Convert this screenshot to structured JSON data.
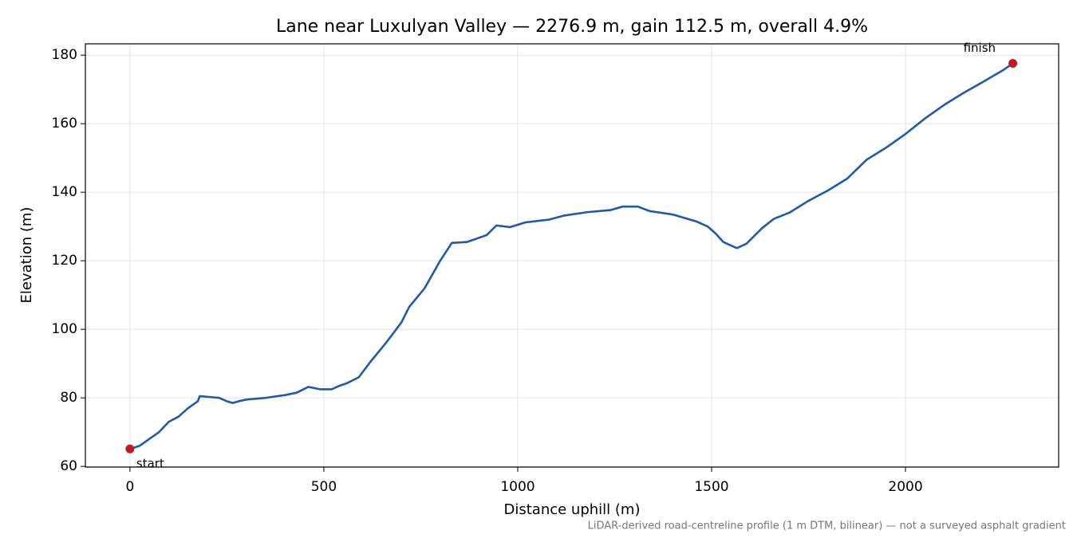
{
  "chart_data": {
    "type": "line",
    "title": "Lane near Luxulyan Valley — 2276.9 m, gain 112.5 m, overall 4.9%",
    "xlabel": "Distance uphill (m)",
    "ylabel": "Elevation (m)",
    "note": "LiDAR-derived road-centreline profile (1 m DTM, bilinear) — not a surveyed asphalt gradient",
    "color": "#1f5aa8",
    "x": [
      0,
      25,
      50,
      75,
      100,
      125,
      150,
      175,
      180,
      200,
      230,
      250,
      265,
      280,
      300,
      350,
      400,
      430,
      460,
      490,
      520,
      540,
      560,
      590,
      620,
      660,
      700,
      720,
      760,
      800,
      830,
      870,
      920,
      945,
      980,
      1020,
      1080,
      1120,
      1180,
      1240,
      1270,
      1310,
      1340,
      1400,
      1460,
      1490,
      1510,
      1530,
      1565,
      1590,
      1630,
      1660,
      1700,
      1750,
      1800,
      1850,
      1900,
      1950,
      2000,
      2050,
      2100,
      2150,
      2200,
      2250,
      2276.9
    ],
    "values": [
      65.1,
      66,
      68,
      70,
      73,
      74.5,
      77,
      79,
      80.5,
      80.3,
      80,
      79,
      78.5,
      79,
      79.5,
      80,
      80.8,
      81.5,
      83.2,
      82.5,
      82.5,
      83.5,
      84.3,
      86,
      90.5,
      96,
      102,
      106.5,
      112,
      120,
      125.2,
      125.5,
      127.5,
      130.3,
      129.8,
      131.2,
      132,
      133.2,
      134.2,
      134.8,
      135.8,
      135.8,
      134.5,
      133.5,
      131.5,
      130,
      128,
      125.5,
      123.7,
      125,
      129.5,
      132.2,
      134,
      137.5,
      140.5,
      144,
      149.5,
      153,
      157,
      161.5,
      165.5,
      169,
      172.2,
      175.5,
      177.6
    ],
    "markers": [
      {
        "text": "start",
        "x": 0,
        "y": 65.1,
        "color": "#c0182a"
      },
      {
        "text": "finish",
        "x": 2276.9,
        "y": 177.6,
        "color": "#c0182a"
      }
    ],
    "xlim": [
      -115,
      2395
    ],
    "ylim": [
      59.8,
      183.3
    ],
    "xticks": [
      0,
      500,
      1000,
      1500,
      2000
    ],
    "yticks": [
      60,
      80,
      100,
      120,
      140,
      160,
      180
    ],
    "grid": true
  }
}
